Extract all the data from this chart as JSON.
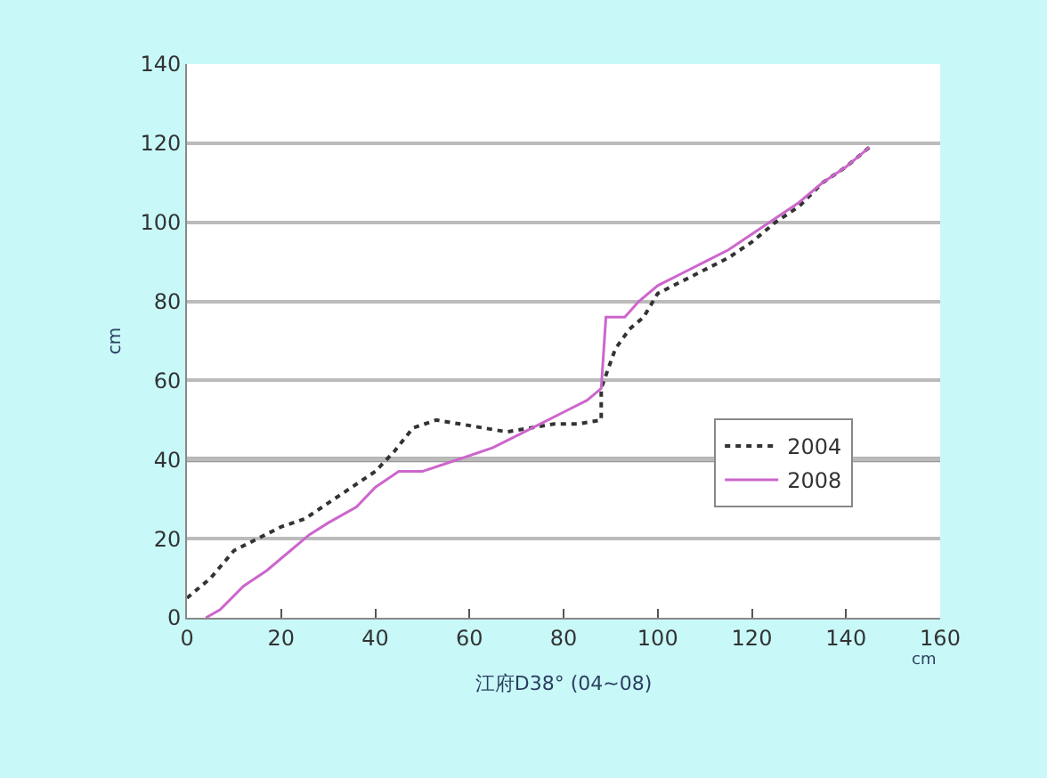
{
  "chart_data": {
    "type": "line",
    "xlabel": "江府D38° (04~08)",
    "ylabel": "cm",
    "annotations": [
      "cm"
    ],
    "xlim": [
      0,
      160
    ],
    "xticks": [
      0,
      20,
      40,
      60,
      80,
      100,
      120,
      140,
      160
    ],
    "ylim": [
      0,
      140
    ],
    "yticks": [
      0,
      20,
      40,
      60,
      80,
      100,
      120,
      140
    ],
    "grid": "y",
    "legend": "right",
    "marker": "none",
    "ref_lines": [
      {
        "axis": "y",
        "value": 40,
        "label": null,
        "color": "#999999"
      }
    ],
    "series": [
      {
        "name": "2004",
        "color": "#333333",
        "line_style": "dotted",
        "x": [
          0,
          5,
          10,
          15,
          20,
          25,
          30,
          35,
          40,
          44,
          48,
          53,
          58,
          63,
          68,
          73,
          78,
          83,
          88,
          88,
          91,
          94,
          97,
          100,
          105,
          110,
          115,
          120,
          125,
          130,
          135,
          140,
          145
        ],
        "values": [
          5,
          10,
          17,
          20,
          23,
          25,
          29,
          33,
          37,
          42,
          48,
          50,
          49,
          48,
          47,
          48,
          49,
          49,
          50,
          58,
          68,
          73,
          76,
          82,
          85,
          88,
          91,
          95,
          100,
          104,
          110,
          114,
          119
        ]
      },
      {
        "name": "2008",
        "color": "#cc66cc",
        "line_style": "solid",
        "x": [
          4,
          7,
          12,
          17,
          22,
          26,
          30,
          36,
          40,
          45,
          50,
          55,
          60,
          65,
          70,
          75,
          80,
          85,
          88,
          89,
          93,
          96,
          100,
          105,
          110,
          115,
          120,
          125,
          130,
          135,
          140,
          145
        ],
        "values": [
          0,
          2,
          8,
          12,
          17,
          21,
          24,
          28,
          33,
          37,
          37,
          39,
          41,
          43,
          46,
          49,
          52,
          55,
          58,
          76,
          76,
          80,
          84,
          87,
          90,
          93,
          97,
          101,
          105,
          110,
          114,
          119
        ]
      }
    ]
  }
}
